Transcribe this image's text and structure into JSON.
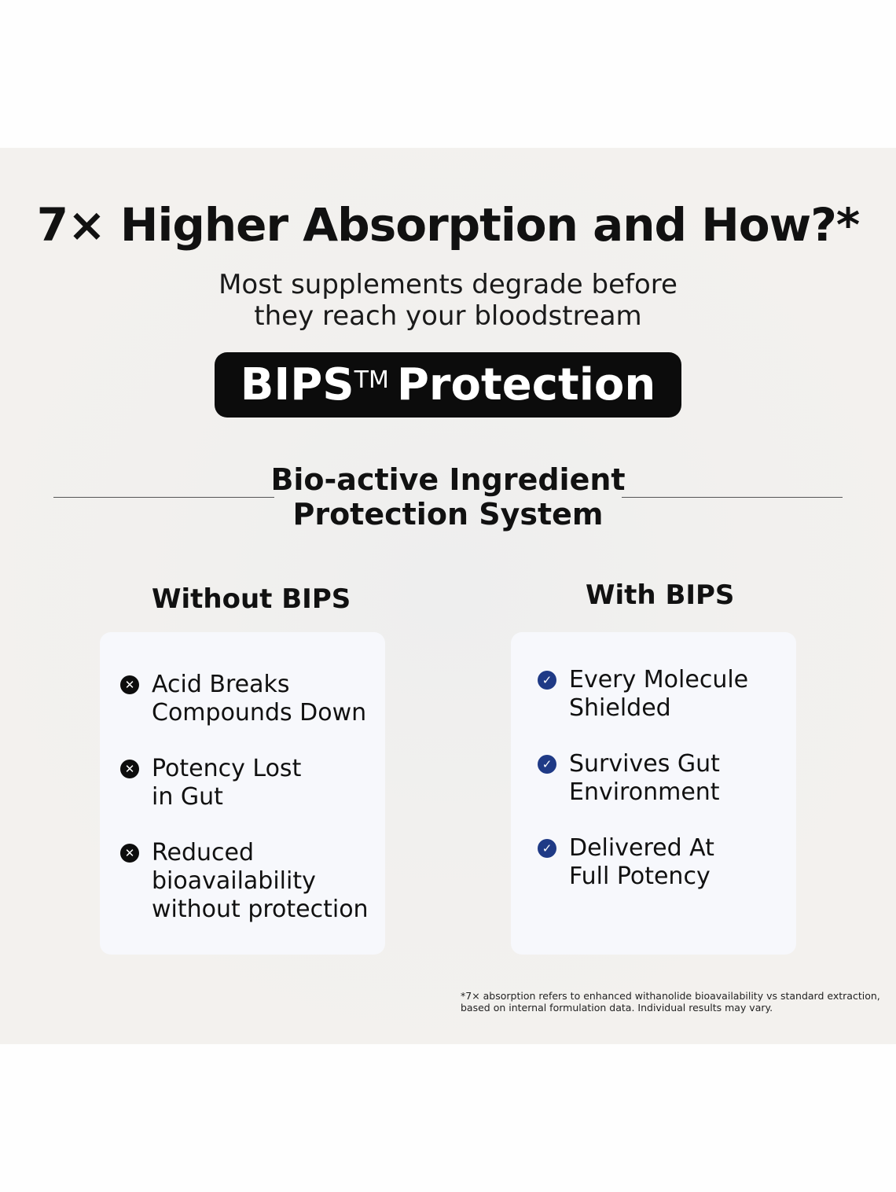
{
  "title": "7× Higher Absorption and How?*",
  "subtitle_lines": [
    "Most supplements degrade before",
    "they reach your bloodstream"
  ],
  "badge": {
    "name": "BIPS",
    "tm": "TM",
    "rest": "Protection"
  },
  "system_lines": [
    "Bio-active Ingredient",
    "Protection System"
  ],
  "without": {
    "heading": "Without BIPS",
    "icon": "x-circle-icon",
    "items": [
      [
        "Acid Breaks",
        "Compounds Down"
      ],
      [
        "Potency Lost",
        "in Gut"
      ],
      [
        "Reduced",
        "bioavailability",
        "without protection"
      ]
    ]
  },
  "with": {
    "heading": "With BIPS",
    "icon": "check-circle-icon",
    "items": [
      [
        "Every Molecule",
        "Shielded"
      ],
      [
        "Survives Gut",
        "Environment"
      ],
      [
        "Delivered At",
        "Full Potency"
      ]
    ]
  },
  "footnote_lines": [
    "*7× absorption refers to enhanced withanolide bioavailability vs standard extraction,",
    "based on internal formulation data. Individual results may vary."
  ],
  "colors": {
    "background": "#f2f0ed",
    "check": "#1f3a86",
    "badge": "#0c0c0c",
    "card": "#f7f8fc"
  }
}
